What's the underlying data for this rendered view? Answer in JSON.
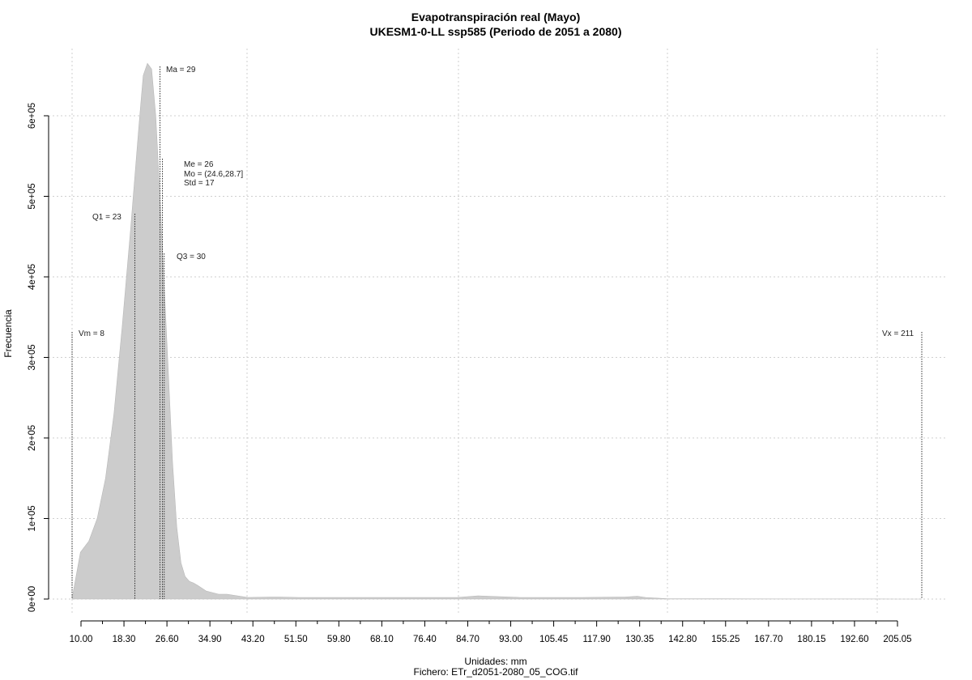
{
  "chart_data": {
    "type": "area",
    "title": "Evapotranspiración real (Mayo)",
    "subtitle": "UKESM1-0-LL ssp585 (Periodo de 2051 a 2080)",
    "xlabel": "Unidades: mm",
    "ylabel": "Frecuencia",
    "footer": "Fichero: ETr_d2051-2080_05_COG.tif",
    "xlim": [
      8,
      211
    ],
    "ylim": [
      0,
      600000
    ],
    "grid": true,
    "x_ticks": [
      "10.00",
      "18.30",
      "26.60",
      "34.90",
      "43.20",
      "51.50",
      "59.80",
      "68.10",
      "76.40",
      "84.70",
      "93.00",
      "105.45",
      "117.90",
      "130.35",
      "142.80",
      "155.25",
      "167.70",
      "180.15",
      "192.60",
      "205.05"
    ],
    "y_ticks": [
      "0e+00",
      "1e+05",
      "2e+05",
      "3e+05",
      "4e+05",
      "5e+05",
      "6e+05"
    ],
    "y_tick_values": [
      0,
      100000,
      200000,
      300000,
      400000,
      500000,
      600000
    ],
    "series": [
      {
        "x": [
          8,
          10,
          12,
          14,
          16,
          18,
          20,
          22,
          24,
          25,
          26,
          27,
          28,
          29,
          30,
          31,
          32,
          33,
          34,
          35,
          36,
          37,
          38,
          40,
          43,
          45,
          50,
          55,
          58,
          62,
          66,
          70,
          80,
          93,
          100,
          105,
          115,
          130,
          140,
          143,
          145,
          150,
          160,
          170,
          180,
          192,
          200,
          205,
          209,
          211
        ],
        "y": [
          1000,
          58000,
          72000,
          100000,
          150000,
          230000,
          340000,
          460000,
          590000,
          650000,
          665000,
          658000,
          600000,
          500000,
          390000,
          280000,
          170000,
          90000,
          45000,
          28000,
          22000,
          20000,
          17000,
          10000,
          6000,
          6000,
          2000,
          2500,
          2500,
          2000,
          2000,
          2000,
          2000,
          2000,
          2000,
          4000,
          2000,
          2000,
          2500,
          3500,
          2000,
          500,
          300,
          200,
          100,
          100,
          100,
          50,
          0,
          0
        ]
      }
    ],
    "annotations": [
      {
        "label": "Vm = 8",
        "x": 8
      },
      {
        "label": "Q1 = 23",
        "x": 23
      },
      {
        "label": "Me = 26",
        "x": 26
      },
      {
        "label": "Mo = (24.6,28.7]",
        "x": 26
      },
      {
        "label": "Std = 17",
        "x": 26
      },
      {
        "label": "Ma = 29",
        "x": 29
      },
      {
        "label": "Q3 = 30",
        "x": 30
      },
      {
        "label": "Vx = 211",
        "x": 211
      }
    ],
    "fill_color": "#cccccc",
    "grid_color": "#cfcfcf"
  }
}
